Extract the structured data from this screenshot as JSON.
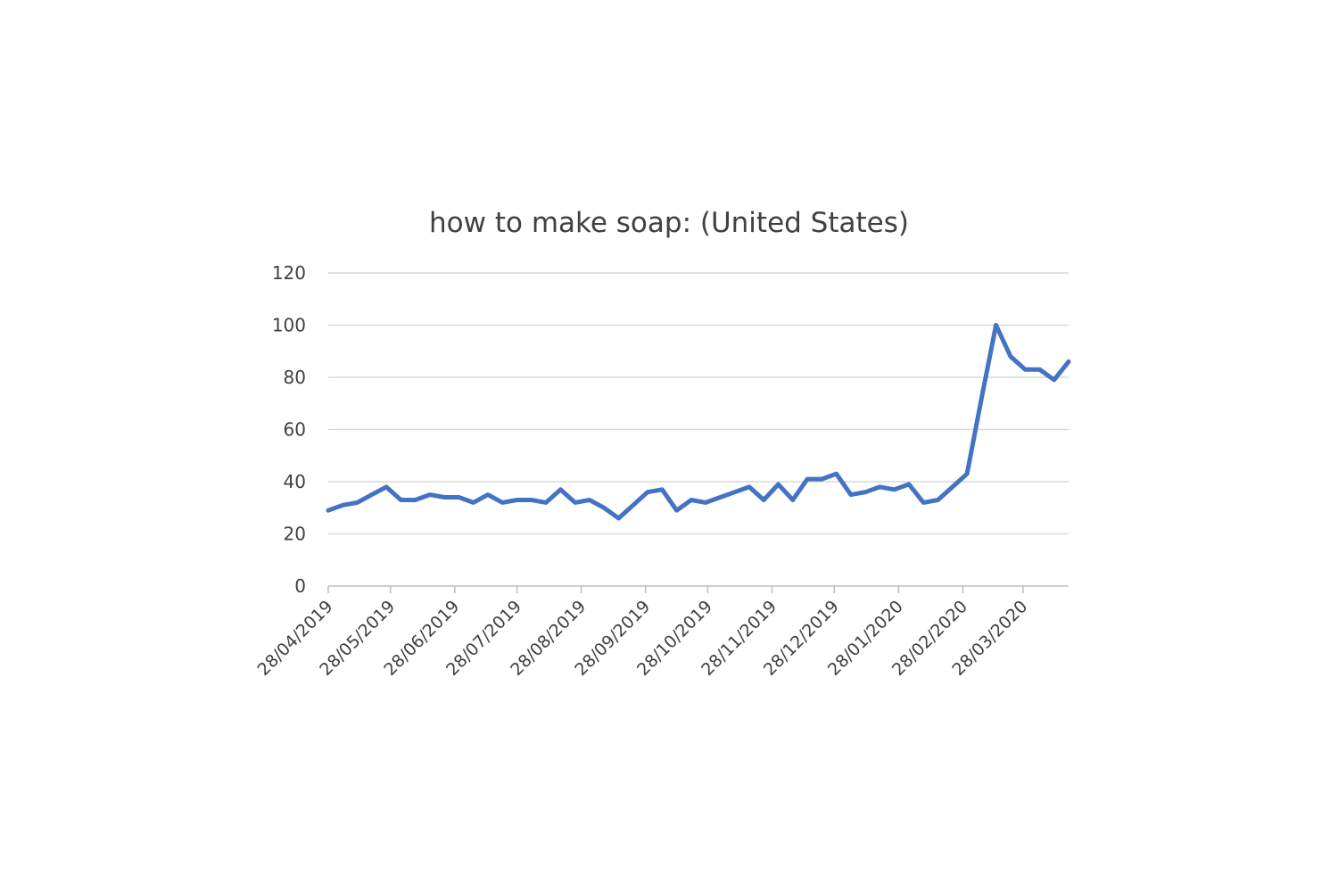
{
  "chart_data": {
    "type": "line",
    "title": "how to make soap: (United States)",
    "xlabel": "",
    "ylabel": "",
    "ylim": [
      0,
      120
    ],
    "y_ticks": [
      "0",
      "20",
      "40",
      "60",
      "80",
      "100",
      "120"
    ],
    "x_tick_labels": [
      "28/04/2019",
      "28/05/2019",
      "28/06/2019",
      "28/07/2019",
      "28/08/2019",
      "28/09/2019",
      "28/10/2019",
      "28/11/2019",
      "28/12/2019",
      "28/01/2020",
      "28/02/2020",
      "28/03/2020"
    ],
    "grid": true,
    "legend": "none",
    "line_color": "#4472c4",
    "x": [
      "28/04/2019",
      "05/05/2019",
      "12/05/2019",
      "19/05/2019",
      "26/05/2019",
      "02/06/2019",
      "09/06/2019",
      "16/06/2019",
      "23/06/2019",
      "30/06/2019",
      "07/07/2019",
      "14/07/2019",
      "21/07/2019",
      "28/07/2019",
      "04/08/2019",
      "11/08/2019",
      "18/08/2019",
      "25/08/2019",
      "01/09/2019",
      "08/09/2019",
      "15/09/2019",
      "22/09/2019",
      "29/09/2019",
      "06/10/2019",
      "13/10/2019",
      "20/10/2019",
      "27/10/2019",
      "03/11/2019",
      "10/11/2019",
      "17/11/2019",
      "24/11/2019",
      "01/12/2019",
      "08/12/2019",
      "15/12/2019",
      "22/12/2019",
      "29/12/2019",
      "05/01/2020",
      "12/01/2020",
      "19/01/2020",
      "26/01/2020",
      "02/02/2020",
      "09/02/2020",
      "16/02/2020",
      "23/02/2020",
      "01/03/2020",
      "08/03/2020",
      "15/03/2020",
      "22/03/2020",
      "29/03/2020",
      "05/04/2020",
      "12/04/2020",
      "19/04/2020"
    ],
    "series": [
      {
        "values": [
          29,
          31,
          32,
          35,
          38,
          33,
          33,
          35,
          34,
          34,
          32,
          35,
          32,
          33,
          33,
          32,
          37,
          32,
          33,
          30,
          26,
          31,
          36,
          37,
          29,
          33,
          32,
          34,
          36,
          38,
          33,
          39,
          33,
          41,
          41,
          43,
          35,
          36,
          38,
          37,
          39,
          32,
          33,
          38,
          43,
          72,
          100,
          88,
          83,
          83,
          79,
          86
        ]
      }
    ]
  }
}
